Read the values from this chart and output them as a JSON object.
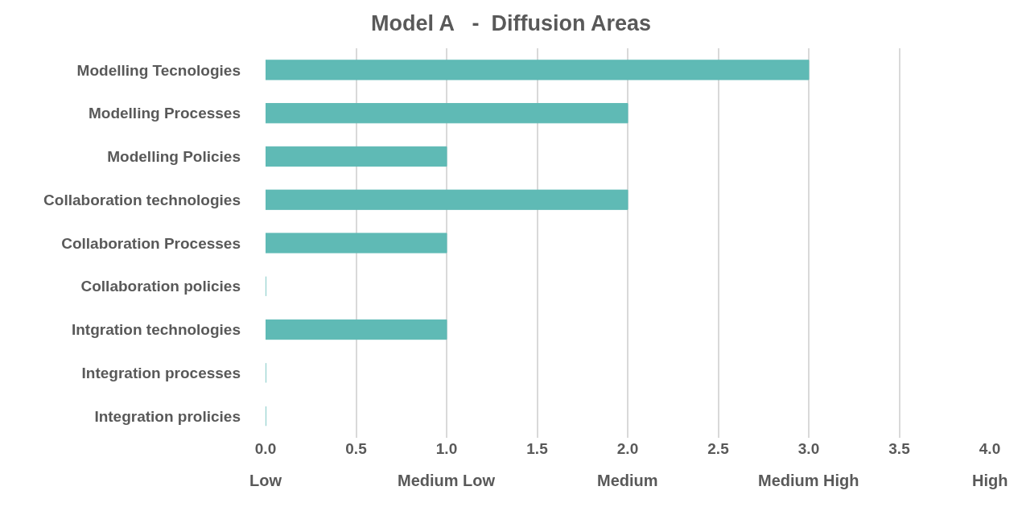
{
  "chart_data": {
    "type": "bar",
    "orientation": "horizontal",
    "title": "Model A   -  Diffusion Areas",
    "categories": [
      "Modelling Tecnologies",
      "Modelling Processes",
      "Modelling Policies",
      "Collaboration technologies",
      "Collaboration Processes",
      "Collaboration policies",
      "Intgration technologies",
      "Integration processes",
      "Integration prolicies"
    ],
    "values": [
      3,
      2,
      1,
      2,
      1,
      0,
      1,
      0,
      0
    ],
    "color": "#5fbab5",
    "xlim": [
      0,
      4
    ],
    "xticks": [
      {
        "value": 0,
        "label": "0.0"
      },
      {
        "value": 0.5,
        "label": "0.5"
      },
      {
        "value": 1,
        "label": "1.0"
      },
      {
        "value": 1.5,
        "label": "1.5"
      },
      {
        "value": 2,
        "label": "2.0"
      },
      {
        "value": 2.5,
        "label": "2.5"
      },
      {
        "value": 3,
        "label": "3.0"
      },
      {
        "value": 3.5,
        "label": "3.5"
      },
      {
        "value": 4,
        "label": "4.0"
      }
    ],
    "annotations": [
      "Low",
      "Medium Low",
      "Medium",
      "Medium High",
      "High"
    ],
    "grid": "x"
  }
}
